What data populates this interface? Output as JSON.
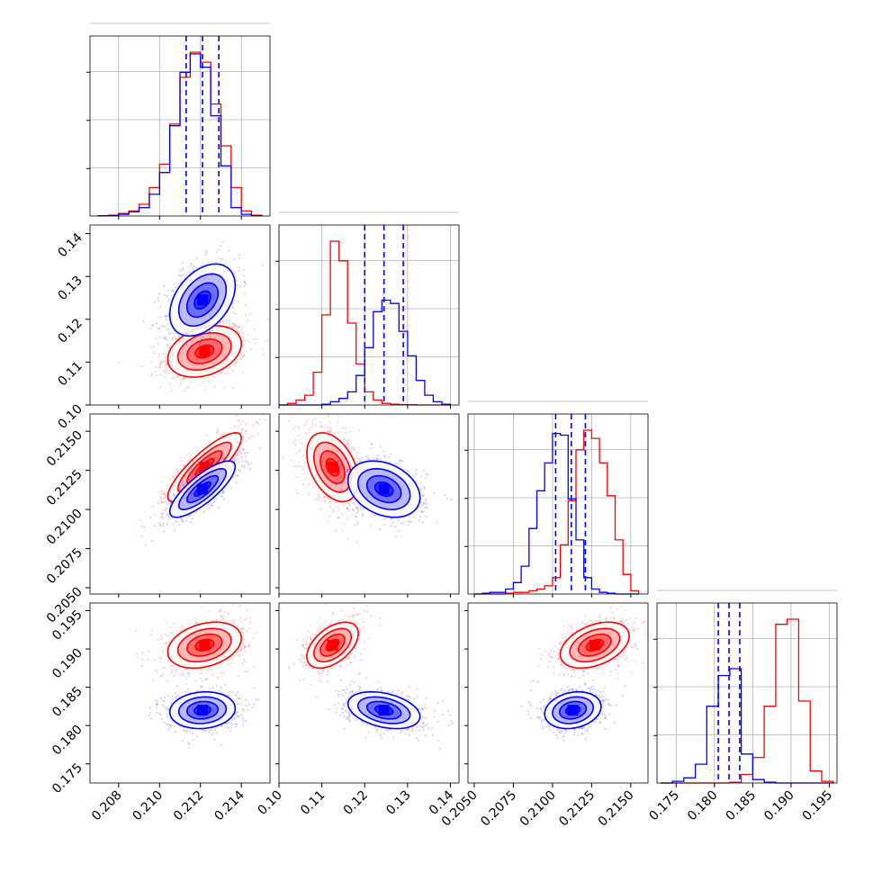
{
  "chart_data": {
    "type": "corner",
    "title": "",
    "parameters": [
      "",
      "",
      "",
      ""
    ],
    "series": [
      {
        "name": "",
        "color": "#ff0000",
        "mean": [
          0.2122,
          0.1125,
          0.2127,
          0.1905
        ],
        "std": [
          0.0009,
          0.003,
          0.0011,
          0.0015
        ]
      },
      {
        "name": "",
        "color": "#0000ff",
        "mean": [
          0.2121,
          0.1245,
          0.2113,
          0.182
        ],
        "std": [
          0.0008,
          0.0042,
          0.0009,
          0.0012
        ]
      }
    ],
    "quantiles_blue": [
      [
        0.2113,
        0.2121,
        0.2129
      ],
      [
        0.12,
        0.1245,
        0.129
      ],
      [
        0.2102,
        0.2112,
        0.2121
      ],
      [
        0.1805,
        0.1819,
        0.1833
      ]
    ],
    "histograms": [
      {
        "edges": [
          0.207,
          0.2075,
          0.208,
          0.2085,
          0.209,
          0.2095,
          0.21,
          0.2105,
          0.211,
          0.2115,
          0.212,
          0.2125,
          0.213,
          0.2135,
          0.214,
          0.2145,
          0.215
        ],
        "red": [
          0.2,
          0.5,
          1.5,
          3,
          7,
          17,
          31,
          55,
          83,
          98,
          92,
          67,
          42,
          17,
          3,
          0.5
        ],
        "blue": [
          0.1,
          0.3,
          1,
          2.5,
          5,
          13,
          26,
          54,
          86,
          97,
          89,
          60,
          30,
          5,
          1,
          0.2
        ]
      },
      {
        "edges": [
          0.1,
          0.102,
          0.104,
          0.106,
          0.108,
          0.11,
          0.112,
          0.114,
          0.116,
          0.118,
          0.12,
          0.122,
          0.124,
          0.126,
          0.128,
          0.13,
          0.132,
          0.134,
          0.136,
          0.138,
          0.14
        ],
        "red": [
          0,
          1,
          3,
          6,
          20,
          55,
          100,
          88,
          50,
          25,
          8,
          3,
          1,
          0.5,
          0.3,
          0.2,
          0,
          0,
          0,
          0
        ],
        "blue": [
          0,
          0,
          0,
          0,
          0,
          0.5,
          2,
          4,
          8,
          18,
          35,
          57,
          64,
          62,
          45,
          30,
          15,
          6,
          2,
          0.5
        ]
      },
      {
        "edges": [
          0.205,
          0.2055,
          0.206,
          0.2065,
          0.207,
          0.2075,
          0.208,
          0.2085,
          0.209,
          0.2095,
          0.21,
          0.2105,
          0.211,
          0.2115,
          0.212,
          0.2125,
          0.213,
          0.2135,
          0.214,
          0.2145,
          0.215,
          0.2155
        ],
        "red": [
          0,
          0,
          0,
          0,
          0.5,
          1,
          1,
          2,
          3,
          5,
          10,
          30,
          57,
          88,
          100,
          95,
          80,
          60,
          33,
          12,
          2
        ],
        "blue": [
          0,
          0.5,
          1,
          1,
          3,
          7,
          17,
          40,
          63,
          80,
          98,
          97,
          58,
          33,
          10,
          3,
          1,
          0.5,
          0,
          0,
          0
        ]
      },
      {
        "edges": [
          0.173,
          0.1745,
          0.176,
          0.1775,
          0.179,
          0.1805,
          0.182,
          0.1835,
          0.185,
          0.1865,
          0.188,
          0.1895,
          0.191,
          0.1925,
          0.194,
          0.1955
        ],
        "red": [
          0,
          0,
          0,
          0,
          0,
          0,
          0.5,
          5,
          15,
          45,
          93,
          96,
          48,
          7,
          1
        ],
        "blue": [
          0,
          1,
          3,
          11,
          45,
          63,
          67,
          17,
          2,
          0.5,
          0,
          0,
          0,
          0,
          0
        ]
      }
    ],
    "ranges": [
      [
        0.2066,
        0.2154
      ],
      [
        0.1,
        0.142
      ],
      [
        0.2046,
        0.2161
      ],
      [
        0.1725,
        0.196
      ]
    ],
    "ticks": [
      [
        0.208,
        0.21,
        0.212,
        0.214
      ],
      [
        0.1,
        0.11,
        0.12,
        0.13,
        0.14
      ],
      [
        0.205,
        0.2075,
        0.21,
        0.2125,
        0.215
      ],
      [
        0.175,
        0.18,
        0.185,
        0.19,
        0.195
      ]
    ],
    "tick_labels": [
      [
        "0.208",
        "0.210",
        "0.212",
        "0.214"
      ],
      [
        "0.10",
        "0.11",
        "0.12",
        "0.13",
        "0.14"
      ],
      [
        "0.2050",
        "0.2075",
        "0.2100",
        "0.2125",
        "0.2150"
      ],
      [
        "0.175",
        "0.180",
        "0.185",
        "0.190",
        "0.195"
      ]
    ],
    "grid": true,
    "legend": "none"
  }
}
